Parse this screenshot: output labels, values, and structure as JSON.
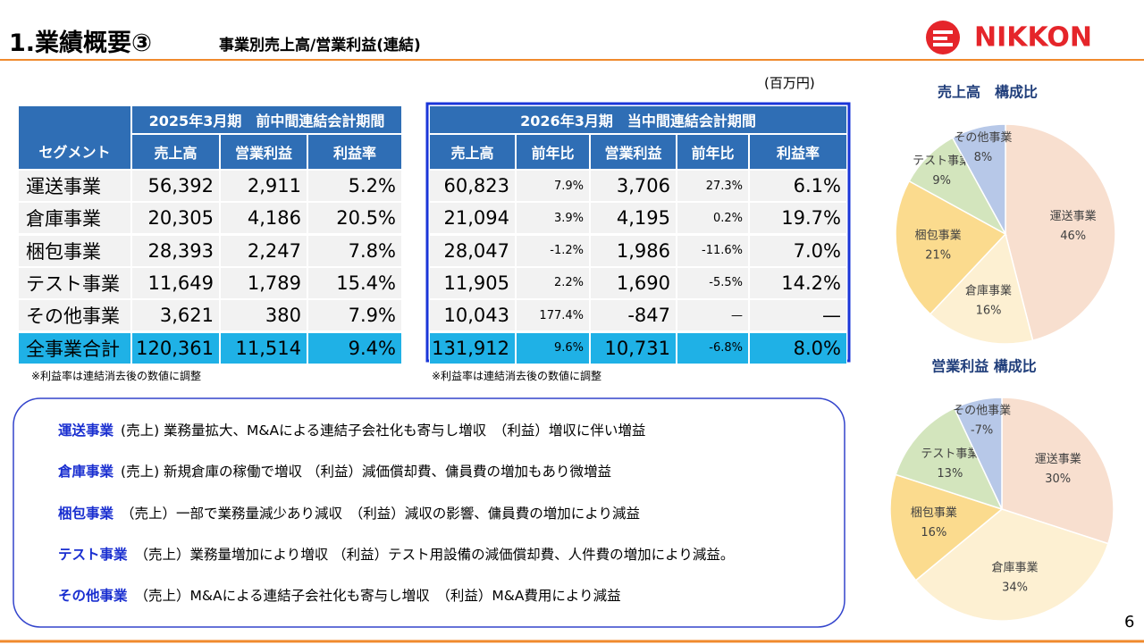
{
  "header": {
    "title": "1.業績概要③",
    "subtitle": "事業別売上高/営業利益(連結)",
    "logo": "NIKKON"
  },
  "unit": "(百万円)",
  "table": {
    "segment_header": "セグメント",
    "prev_period": "2025年3月期　前中間連結会計期間",
    "curr_period": "2026年3月期　当中間連結会計期間",
    "prev_columns": [
      "売上高",
      "営業利益",
      "利益率"
    ],
    "curr_columns": [
      "売上高",
      "前年比",
      "営業利益",
      "前年比",
      "利益率"
    ],
    "rows": [
      [
        "運送事業",
        "56,392",
        "2,911",
        "5.2%",
        "60,823",
        "7.9%",
        "3,706",
        "27.3%",
        "6.1%"
      ],
      [
        "倉庫事業",
        "20,305",
        "4,186",
        "20.5%",
        "21,094",
        "3.9%",
        "4,195",
        "0.2%",
        "19.7%"
      ],
      [
        "梱包事業",
        "28,393",
        "2,247",
        "7.8%",
        "28,047",
        "-1.2%",
        "1,986",
        "-11.6%",
        "7.0%"
      ],
      [
        "テスト事業",
        "11,649",
        "1,789",
        "15.4%",
        "11,905",
        "2.2%",
        "1,690",
        "-5.5%",
        "14.2%"
      ],
      [
        "その他事業",
        "3,621",
        "380",
        "7.9%",
        "10,043",
        "177.4%",
        "-847",
        "—",
        "—"
      ],
      [
        "全事業合計",
        "120,361",
        "11,514",
        "9.4%",
        "131,912",
        "9.6%",
        "10,731",
        "-6.8%",
        "8.0%"
      ]
    ],
    "notes": [
      "※利益率は連結消去後の数値に調整",
      "※利益率は連結消去後の数値に調整"
    ]
  },
  "commentary": [
    {
      "segment": "運送事業",
      "text": "(売上) 業務量拡大、M&Aによる連結子会社化も寄与し増収　（利益）増収に伴い増益"
    },
    {
      "segment": "倉庫事業",
      "text": "(売上) 新規倉庫の稼働で増収 （利益）減価償却費、傭員費の増加もあり微増益"
    },
    {
      "segment": "梱包事業",
      "text": "（売上）一部で業務量減少あり減収　（利益）減収の影響、傭員費の増加により減益"
    },
    {
      "segment": "テスト事業",
      "text": "（売上）業務量増加により増収 （利益）テスト用設備の減価償却費、人件費の増加により減益。"
    },
    {
      "segment": "その他事業",
      "text": "（売上）M&Aによる連結子会社化も寄与し増収　（利益）M&A費用により減益"
    }
  ],
  "page_number": "6",
  "chart_data": [
    {
      "type": "pie",
      "title": "売上高　構成比",
      "categories": [
        "運送事業",
        "倉庫事業",
        "梱包事業",
        "テスト事業",
        "その他事業"
      ],
      "values": [
        46,
        16,
        21,
        9,
        8
      ],
      "value_labels": [
        "46%",
        "16%",
        "21%",
        "9%",
        "8%"
      ],
      "colors": [
        "#f8dfcf",
        "#fdf0d2",
        "#fbdb8e",
        "#d3e5bd",
        "#b7c8e8"
      ]
    },
    {
      "type": "pie",
      "title": "営業利益 構成比",
      "categories": [
        "運送事業",
        "倉庫事業",
        "梱包事業",
        "テスト事業",
        "その他事業"
      ],
      "values": [
        30,
        34,
        16,
        13,
        -7
      ],
      "value_labels": [
        "30%",
        "34%",
        "16%",
        "13%",
        "-7%"
      ],
      "colors": [
        "#f8dfcf",
        "#fdf0d2",
        "#fbdb8e",
        "#d3e5bd",
        "#b7c8e8"
      ]
    }
  ]
}
